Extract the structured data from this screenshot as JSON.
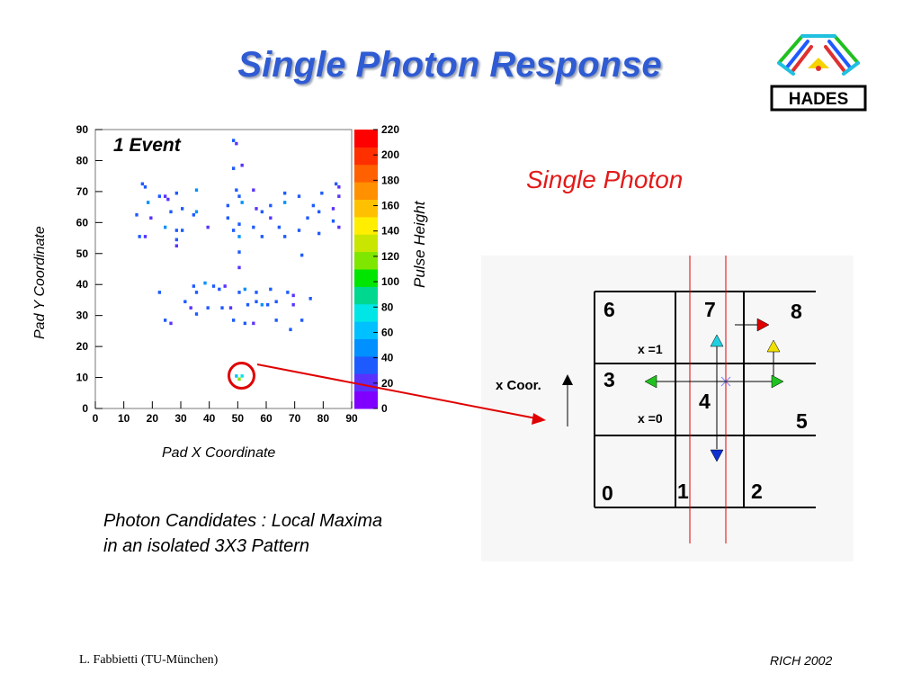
{
  "title": "Single Photon Response",
  "logo": {
    "text": "HADES"
  },
  "chart_data": {
    "type": "heatmap",
    "annotation": "1 Event",
    "xlabel": "Pad X Coordinate",
    "ylabel": "Pad Y Coordinate",
    "zlabel": "Pulse Height",
    "xlim": [
      0,
      90
    ],
    "ylim": [
      0,
      90
    ],
    "zlim": [
      0,
      220
    ],
    "xticks": [
      "0",
      "10",
      "20",
      "30",
      "40",
      "50",
      "60",
      "70",
      "80",
      "90"
    ],
    "yticks": [
      "0",
      "10",
      "20",
      "30",
      "40",
      "50",
      "60",
      "70",
      "80",
      "90"
    ],
    "zticks": [
      "0",
      "20",
      "40",
      "60",
      "80",
      "100",
      "120",
      "140",
      "160",
      "180",
      "200",
      "220"
    ],
    "pads": [
      [
        48,
        86,
        30
      ],
      [
        49,
        85,
        25
      ],
      [
        48,
        77,
        35
      ],
      [
        51,
        78,
        25
      ],
      [
        16,
        72,
        40
      ],
      [
        17,
        71,
        30
      ],
      [
        84,
        72,
        35
      ],
      [
        85,
        71,
        25
      ],
      [
        22,
        68,
        30
      ],
      [
        24,
        68,
        25
      ],
      [
        28,
        69,
        30
      ],
      [
        35,
        70,
        45
      ],
      [
        49,
        70,
        40
      ],
      [
        50,
        68,
        30
      ],
      [
        55,
        70,
        25
      ],
      [
        66,
        69,
        30
      ],
      [
        71,
        68,
        35
      ],
      [
        79,
        69,
        30
      ],
      [
        85,
        68,
        25
      ],
      [
        18,
        66,
        45
      ],
      [
        25,
        67,
        25
      ],
      [
        30,
        64,
        30
      ],
      [
        35,
        63,
        45
      ],
      [
        46,
        65,
        30
      ],
      [
        51,
        66,
        50
      ],
      [
        56,
        64,
        25
      ],
      [
        58,
        63,
        30
      ],
      [
        61,
        65,
        35
      ],
      [
        66,
        66,
        45
      ],
      [
        76,
        65,
        30
      ],
      [
        83,
        64,
        25
      ],
      [
        14,
        62,
        30
      ],
      [
        19,
        61,
        25
      ],
      [
        26,
        63,
        35
      ],
      [
        34,
        62,
        40
      ],
      [
        46,
        61,
        30
      ],
      [
        50,
        59,
        35
      ],
      [
        61,
        61,
        25
      ],
      [
        74,
        61,
        30
      ],
      [
        78,
        63,
        35
      ],
      [
        83,
        60,
        30
      ],
      [
        15,
        55,
        30
      ],
      [
        17,
        55,
        25
      ],
      [
        24,
        58,
        45
      ],
      [
        28,
        57,
        40
      ],
      [
        30,
        57,
        30
      ],
      [
        39,
        58,
        25
      ],
      [
        48,
        57,
        30
      ],
      [
        50,
        55,
        45
      ],
      [
        55,
        58,
        30
      ],
      [
        58,
        55,
        35
      ],
      [
        64,
        58,
        40
      ],
      [
        66,
        55,
        30
      ],
      [
        71,
        57,
        35
      ],
      [
        78,
        56,
        30
      ],
      [
        85,
        58,
        25
      ],
      [
        28,
        54,
        30
      ],
      [
        28,
        52,
        25
      ],
      [
        50,
        50,
        30
      ],
      [
        72,
        49,
        35
      ],
      [
        50,
        45,
        25
      ],
      [
        34,
        39,
        30
      ],
      [
        35,
        37,
        40
      ],
      [
        38,
        40,
        45
      ],
      [
        41,
        39,
        30
      ],
      [
        43,
        38,
        35
      ],
      [
        45,
        39,
        25
      ],
      [
        50,
        37,
        30
      ],
      [
        52,
        38,
        45
      ],
      [
        56,
        37,
        35
      ],
      [
        61,
        38,
        30
      ],
      [
        67,
        37,
        40
      ],
      [
        69,
        36,
        25
      ],
      [
        22,
        37,
        30
      ],
      [
        31,
        34,
        35
      ],
      [
        33,
        32,
        25
      ],
      [
        39,
        32,
        30
      ],
      [
        44,
        32,
        40
      ],
      [
        47,
        32,
        25
      ],
      [
        53,
        33,
        35
      ],
      [
        56,
        34,
        30
      ],
      [
        58,
        33,
        45
      ],
      [
        60,
        33,
        30
      ],
      [
        63,
        34,
        35
      ],
      [
        69,
        33,
        25
      ],
      [
        75,
        35,
        30
      ],
      [
        24,
        28,
        30
      ],
      [
        26,
        27,
        25
      ],
      [
        35,
        30,
        35
      ],
      [
        48,
        28,
        30
      ],
      [
        52,
        27,
        40
      ],
      [
        55,
        27,
        25
      ],
      [
        63,
        28,
        30
      ],
      [
        72,
        28,
        35
      ],
      [
        68,
        25,
        30
      ],
      [
        50,
        9,
        120
      ],
      [
        49,
        10,
        60
      ],
      [
        51,
        10,
        80
      ]
    ],
    "circle_center": [
      51,
      10
    ],
    "palette": [
      "#7f00ff",
      "#5a32ff",
      "#1e5bff",
      "#0090ff",
      "#00c0ff",
      "#00e6e6",
      "#00d890",
      "#00e600",
      "#7fe600",
      "#c8e600",
      "#ffee00",
      "#ffc000",
      "#ff9000",
      "#ff6000",
      "#ff3000",
      "#ff0000"
    ]
  },
  "single_photon_label": "Single Photon",
  "pad_numbers": [
    "6",
    "7",
    "8",
    "3",
    "4",
    "5",
    "0",
    "1",
    "2"
  ],
  "x_coor_label": "x Coor.",
  "x1_label": "x =1",
  "x0_label": "x =0",
  "candidates_text": "Photon Candidates : Local Maxima in an isolated 3X3 Pattern",
  "footer": {
    "left": "L. Fabbietti  (TU-München)",
    "right": "RICH 2002"
  },
  "colors": {
    "title": "#2f5bd3",
    "accent_red": "#e21a1a",
    "arrow_red": "#e00000",
    "arrow_cyan": "#20d0e0",
    "arrow_yellow": "#f0e000",
    "arrow_green": "#20c020",
    "arrow_blue": "#1030d0"
  }
}
